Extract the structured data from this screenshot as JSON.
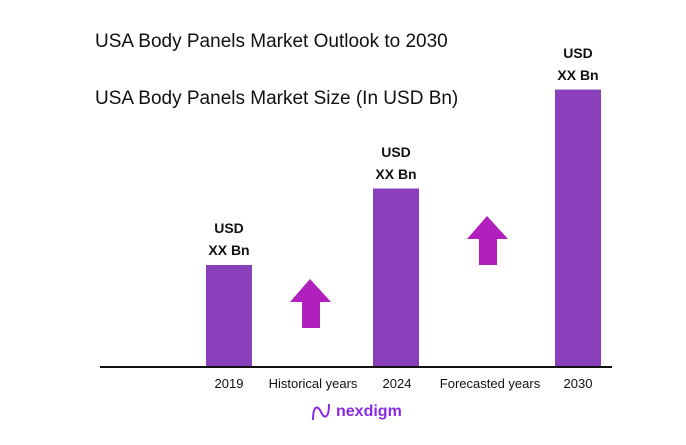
{
  "title": "USA Body Panels Market Outlook to 2030",
  "subtitle": "USA Body Panels Market Size (In USD Bn)",
  "colors": {
    "bar": "#8a3fbb",
    "arrow": "#b11fbd",
    "logo": "#8a2be2"
  },
  "chart_data": {
    "type": "bar",
    "title": "USA Body Panels Market Outlook to 2030",
    "subtitle": "USA Body Panels Market Size (In USD Bn)",
    "categories": [
      "2019",
      "2024",
      "2030"
    ],
    "values": [
      1.0,
      1.75,
      2.72
    ],
    "data_labels": [
      [
        "USD",
        "XX Bn"
      ],
      [
        "USD",
        "XX Bn"
      ],
      [
        "USD",
        "XX Bn"
      ]
    ],
    "annotations": [
      "Historical years",
      "Forecasted years"
    ],
    "annotation_icons": [
      "arrow-up-icon",
      "arrow-up-icon"
    ],
    "grid": false,
    "yaxis_visible": false
  },
  "logo": {
    "text": "nexdigm"
  }
}
